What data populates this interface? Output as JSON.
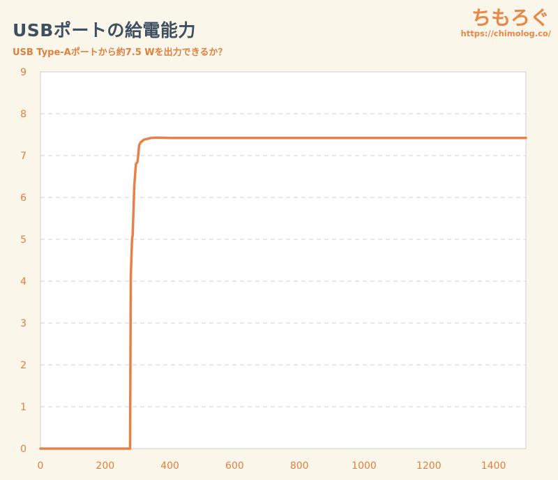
{
  "header": {
    "title": "USBポートの給電能力",
    "subtitle": "USB Type-Aポートから約7.5 Wを出力できるか？"
  },
  "logo": {
    "text": "ちもろぐ",
    "url": "https://chimolog.co/"
  },
  "colors": {
    "line": "#e8804a",
    "tick_text": "#e0803f",
    "title": "#3d4f61",
    "background": "#fbf6ea",
    "plot_background": "#ffffff",
    "grid": "#d2d2d2"
  },
  "chart_data": {
    "type": "line",
    "title": "USBポートの給電能力",
    "subtitle": "USB Type-Aポートから約7.5 Wを出力できるか？",
    "xlabel": "",
    "ylabel": "",
    "xlim": [
      0,
      1500
    ],
    "ylim": [
      0,
      9
    ],
    "x_ticks": [
      0,
      200,
      400,
      600,
      800,
      1000,
      1200,
      1400
    ],
    "y_ticks": [
      0,
      1,
      2,
      3,
      4,
      5,
      6,
      7,
      8,
      9
    ],
    "grid": true,
    "grid_axis": "y",
    "series": [
      {
        "points": [
          [
            0,
            0
          ],
          [
            277,
            0
          ],
          [
            279,
            4.1
          ],
          [
            283,
            5.0
          ],
          [
            285,
            5.1
          ],
          [
            290,
            6.3
          ],
          [
            295,
            6.8
          ],
          [
            300,
            6.85
          ],
          [
            302,
            7.0
          ],
          [
            305,
            7.25
          ],
          [
            310,
            7.32
          ],
          [
            320,
            7.38
          ],
          [
            340,
            7.42
          ],
          [
            360,
            7.43
          ],
          [
            400,
            7.42
          ],
          [
            600,
            7.42
          ],
          [
            800,
            7.42
          ],
          [
            1000,
            7.42
          ],
          [
            1200,
            7.42
          ],
          [
            1500,
            7.42
          ]
        ]
      }
    ]
  }
}
